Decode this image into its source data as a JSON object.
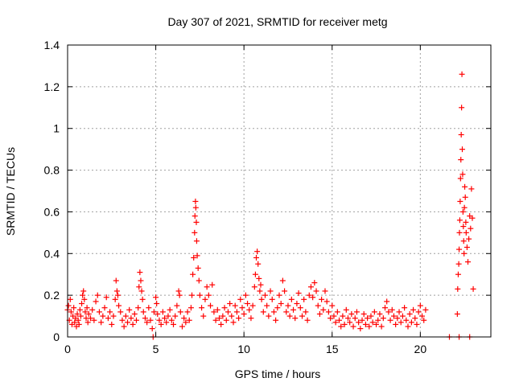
{
  "chart_data": {
    "type": "scatter",
    "title": "Day 307 of 2021, SRMTID for receiver metg",
    "xlabel": "GPS time / hours",
    "ylabel": "SRMTID / TECUs",
    "xlim": [
      0,
      24
    ],
    "ylim": [
      0,
      1.4
    ],
    "x_ticks": [
      0,
      5,
      10,
      15,
      20
    ],
    "x_tick_labels": [
      "0",
      "5",
      "10",
      "15",
      "20"
    ],
    "y_ticks": [
      0,
      0.2,
      0.4,
      0.6,
      0.8,
      1.0,
      1.2,
      1.4
    ],
    "y_tick_labels": [
      "0",
      "0.2",
      "0.4",
      "0.6",
      "0.8",
      "1",
      "1.2",
      "1.4"
    ],
    "grid": true,
    "marker": "plus",
    "series": [
      {
        "name": "SRMTID",
        "color": "#ff0000",
        "points": [
          [
            0.0,
            0.13
          ],
          [
            0.05,
            0.15
          ],
          [
            0.1,
            0.08
          ],
          [
            0.15,
            0.18
          ],
          [
            0.2,
            0.12
          ],
          [
            0.25,
            0.06
          ],
          [
            0.3,
            0.1
          ],
          [
            0.35,
            0.14
          ],
          [
            0.4,
            0.07
          ],
          [
            0.45,
            0.09
          ],
          [
            0.5,
            0.05
          ],
          [
            0.55,
            0.11
          ],
          [
            0.6,
            0.08
          ],
          [
            0.65,
            0.06
          ],
          [
            0.7,
            0.13
          ],
          [
            0.75,
            0.1
          ],
          [
            0.8,
            0.16
          ],
          [
            0.85,
            0.2
          ],
          [
            0.9,
            0.22
          ],
          [
            0.95,
            0.18
          ],
          [
            1.0,
            0.12
          ],
          [
            1.05,
            0.09
          ],
          [
            1.1,
            0.14
          ],
          [
            1.15,
            0.07
          ],
          [
            1.2,
            0.11
          ],
          [
            1.3,
            0.09
          ],
          [
            1.4,
            0.13
          ],
          [
            1.5,
            0.08
          ],
          [
            1.6,
            0.17
          ],
          [
            1.7,
            0.2
          ],
          [
            1.8,
            0.12
          ],
          [
            1.9,
            0.07
          ],
          [
            2.0,
            0.1
          ],
          [
            2.1,
            0.14
          ],
          [
            2.2,
            0.19
          ],
          [
            2.3,
            0.09
          ],
          [
            2.4,
            0.12
          ],
          [
            2.5,
            0.06
          ],
          [
            2.6,
            0.1
          ],
          [
            2.7,
            0.18
          ],
          [
            2.75,
            0.27
          ],
          [
            2.8,
            0.22
          ],
          [
            2.85,
            0.2
          ],
          [
            2.9,
            0.15
          ],
          [
            3.0,
            0.12
          ],
          [
            3.1,
            0.08
          ],
          [
            3.2,
            0.05
          ],
          [
            3.3,
            0.1
          ],
          [
            3.4,
            0.07
          ],
          [
            3.5,
            0.13
          ],
          [
            3.6,
            0.09
          ],
          [
            3.7,
            0.06
          ],
          [
            3.8,
            0.11
          ],
          [
            3.9,
            0.08
          ],
          [
            4.0,
            0.14
          ],
          [
            4.05,
            0.24
          ],
          [
            4.1,
            0.31
          ],
          [
            4.15,
            0.27
          ],
          [
            4.2,
            0.22
          ],
          [
            4.25,
            0.18
          ],
          [
            4.3,
            0.12
          ],
          [
            4.4,
            0.09
          ],
          [
            4.5,
            0.07
          ],
          [
            4.6,
            0.14
          ],
          [
            4.7,
            0.08
          ],
          [
            4.8,
            0.04
          ],
          [
            4.9,
            0.12
          ],
          [
            5.0,
            0.19
          ],
          [
            5.05,
            0.16
          ],
          [
            5.1,
            0.11
          ],
          [
            5.2,
            0.08
          ],
          [
            5.3,
            0.06
          ],
          [
            5.4,
            0.12
          ],
          [
            5.5,
            0.09
          ],
          [
            5.6,
            0.07
          ],
          [
            5.7,
            0.1
          ],
          [
            5.8,
            0.13
          ],
          [
            5.9,
            0.08
          ],
          [
            6.0,
            0.06
          ],
          [
            6.1,
            0.1
          ],
          [
            6.2,
            0.15
          ],
          [
            6.3,
            0.22
          ],
          [
            6.35,
            0.2
          ],
          [
            6.4,
            0.12
          ],
          [
            6.5,
            0.05
          ],
          [
            6.6,
            0.09
          ],
          [
            6.7,
            0.07
          ],
          [
            6.8,
            0.12
          ],
          [
            6.9,
            0.08
          ],
          [
            7.0,
            0.14
          ],
          [
            7.05,
            0.2
          ],
          [
            7.1,
            0.3
          ],
          [
            7.15,
            0.38
          ],
          [
            7.2,
            0.5
          ],
          [
            7.22,
            0.58
          ],
          [
            7.25,
            0.65
          ],
          [
            7.27,
            0.62
          ],
          [
            7.3,
            0.55
          ],
          [
            7.32,
            0.46
          ],
          [
            7.35,
            0.39
          ],
          [
            7.4,
            0.33
          ],
          [
            7.45,
            0.27
          ],
          [
            7.5,
            0.2
          ],
          [
            7.6,
            0.14
          ],
          [
            7.7,
            0.1
          ],
          [
            7.8,
            0.18
          ],
          [
            7.9,
            0.24
          ],
          [
            8.0,
            0.2
          ],
          [
            8.1,
            0.15
          ],
          [
            8.2,
            0.25
          ],
          [
            8.3,
            0.12
          ],
          [
            8.4,
            0.08
          ],
          [
            8.5,
            0.13
          ],
          [
            8.6,
            0.09
          ],
          [
            8.7,
            0.06
          ],
          [
            8.8,
            0.1
          ],
          [
            8.9,
            0.14
          ],
          [
            9.0,
            0.08
          ],
          [
            9.1,
            0.12
          ],
          [
            9.2,
            0.16
          ],
          [
            9.3,
            0.1
          ],
          [
            9.4,
            0.07
          ],
          [
            9.5,
            0.15
          ],
          [
            9.6,
            0.12
          ],
          [
            9.7,
            0.09
          ],
          [
            9.8,
            0.18
          ],
          [
            9.9,
            0.14
          ],
          [
            10.0,
            0.11
          ],
          [
            10.1,
            0.2
          ],
          [
            10.2,
            0.16
          ],
          [
            10.3,
            0.13
          ],
          [
            10.4,
            0.09
          ],
          [
            10.5,
            0.15
          ],
          [
            10.6,
            0.24
          ],
          [
            10.65,
            0.3
          ],
          [
            10.7,
            0.38
          ],
          [
            10.75,
            0.41
          ],
          [
            10.8,
            0.35
          ],
          [
            10.85,
            0.28
          ],
          [
            10.9,
            0.22
          ],
          [
            10.95,
            0.25
          ],
          [
            11.0,
            0.18
          ],
          [
            11.1,
            0.12
          ],
          [
            11.2,
            0.2
          ],
          [
            11.3,
            0.15
          ],
          [
            11.4,
            0.1
          ],
          [
            11.5,
            0.22
          ],
          [
            11.6,
            0.18
          ],
          [
            11.7,
            0.12
          ],
          [
            11.8,
            0.08
          ],
          [
            11.9,
            0.14
          ],
          [
            12.0,
            0.2
          ],
          [
            12.1,
            0.16
          ],
          [
            12.2,
            0.27
          ],
          [
            12.3,
            0.22
          ],
          [
            12.4,
            0.12
          ],
          [
            12.5,
            0.15
          ],
          [
            12.6,
            0.1
          ],
          [
            12.7,
            0.18
          ],
          [
            12.8,
            0.13
          ],
          [
            12.9,
            0.09
          ],
          [
            13.0,
            0.16
          ],
          [
            13.1,
            0.21
          ],
          [
            13.2,
            0.14
          ],
          [
            13.3,
            0.1
          ],
          [
            13.4,
            0.18
          ],
          [
            13.5,
            0.12
          ],
          [
            13.6,
            0.08
          ],
          [
            13.7,
            0.2
          ],
          [
            13.8,
            0.24
          ],
          [
            13.9,
            0.19
          ],
          [
            14.0,
            0.26
          ],
          [
            14.1,
            0.22
          ],
          [
            14.2,
            0.15
          ],
          [
            14.3,
            0.11
          ],
          [
            14.4,
            0.18
          ],
          [
            14.5,
            0.13
          ],
          [
            14.6,
            0.22
          ],
          [
            14.7,
            0.17
          ],
          [
            14.8,
            0.12
          ],
          [
            14.9,
            0.09
          ],
          [
            15.0,
            0.15
          ],
          [
            15.1,
            0.1
          ],
          [
            15.2,
            0.07
          ],
          [
            15.3,
            0.12
          ],
          [
            15.4,
            0.08
          ],
          [
            15.5,
            0.05
          ],
          [
            15.6,
            0.1
          ],
          [
            15.7,
            0.06
          ],
          [
            15.8,
            0.13
          ],
          [
            15.9,
            0.09
          ],
          [
            16.0,
            0.07
          ],
          [
            16.1,
            0.11
          ],
          [
            16.2,
            0.05
          ],
          [
            16.3,
            0.09
          ],
          [
            16.4,
            0.12
          ],
          [
            16.5,
            0.07
          ],
          [
            16.6,
            0.04
          ],
          [
            16.7,
            0.08
          ],
          [
            16.8,
            0.11
          ],
          [
            16.9,
            0.06
          ],
          [
            17.0,
            0.09
          ],
          [
            17.1,
            0.05
          ],
          [
            17.2,
            0.1
          ],
          [
            17.3,
            0.07
          ],
          [
            17.4,
            0.12
          ],
          [
            17.5,
            0.06
          ],
          [
            17.6,
            0.08
          ],
          [
            17.7,
            0.11
          ],
          [
            17.8,
            0.05
          ],
          [
            17.9,
            0.09
          ],
          [
            18.0,
            0.14
          ],
          [
            18.1,
            0.17
          ],
          [
            18.2,
            0.12
          ],
          [
            18.3,
            0.08
          ],
          [
            18.4,
            0.13
          ],
          [
            18.5,
            0.1
          ],
          [
            18.6,
            0.06
          ],
          [
            18.7,
            0.09
          ],
          [
            18.8,
            0.12
          ],
          [
            18.9,
            0.07
          ],
          [
            19.0,
            0.1
          ],
          [
            19.1,
            0.14
          ],
          [
            19.2,
            0.08
          ],
          [
            19.3,
            0.05
          ],
          [
            19.4,
            0.11
          ],
          [
            19.5,
            0.07
          ],
          [
            19.6,
            0.13
          ],
          [
            19.7,
            0.09
          ],
          [
            19.8,
            0.06
          ],
          [
            19.9,
            0.12
          ],
          [
            20.0,
            0.15
          ],
          [
            20.1,
            0.1
          ],
          [
            20.2,
            0.08
          ],
          [
            20.3,
            0.13
          ],
          [
            4.85,
            0.0
          ],
          [
            21.65,
            0.0
          ],
          [
            22.2,
            0.0
          ],
          [
            22.8,
            0.0
          ],
          [
            22.1,
            0.11
          ],
          [
            22.12,
            0.23
          ],
          [
            22.15,
            0.3
          ],
          [
            22.18,
            0.35
          ],
          [
            22.2,
            0.42
          ],
          [
            22.22,
            0.5
          ],
          [
            22.24,
            0.56
          ],
          [
            22.26,
            0.65
          ],
          [
            22.28,
            0.76
          ],
          [
            22.3,
            0.85
          ],
          [
            22.32,
            0.97
          ],
          [
            22.34,
            1.1
          ],
          [
            22.36,
            1.26
          ],
          [
            22.38,
            0.9
          ],
          [
            22.4,
            0.78
          ],
          [
            22.42,
            0.6
          ],
          [
            22.44,
            0.53
          ],
          [
            22.46,
            0.46
          ],
          [
            22.48,
            0.4
          ],
          [
            22.5,
            0.62
          ],
          [
            22.52,
            0.72
          ],
          [
            22.55,
            0.67
          ],
          [
            22.58,
            0.55
          ],
          [
            22.6,
            0.5
          ],
          [
            22.65,
            0.43
          ],
          [
            22.7,
            0.36
          ],
          [
            22.75,
            0.47
          ],
          [
            22.8,
            0.58
          ],
          [
            22.85,
            0.52
          ],
          [
            22.9,
            0.71
          ],
          [
            22.95,
            0.57
          ],
          [
            23.0,
            0.23
          ]
        ]
      }
    ]
  }
}
